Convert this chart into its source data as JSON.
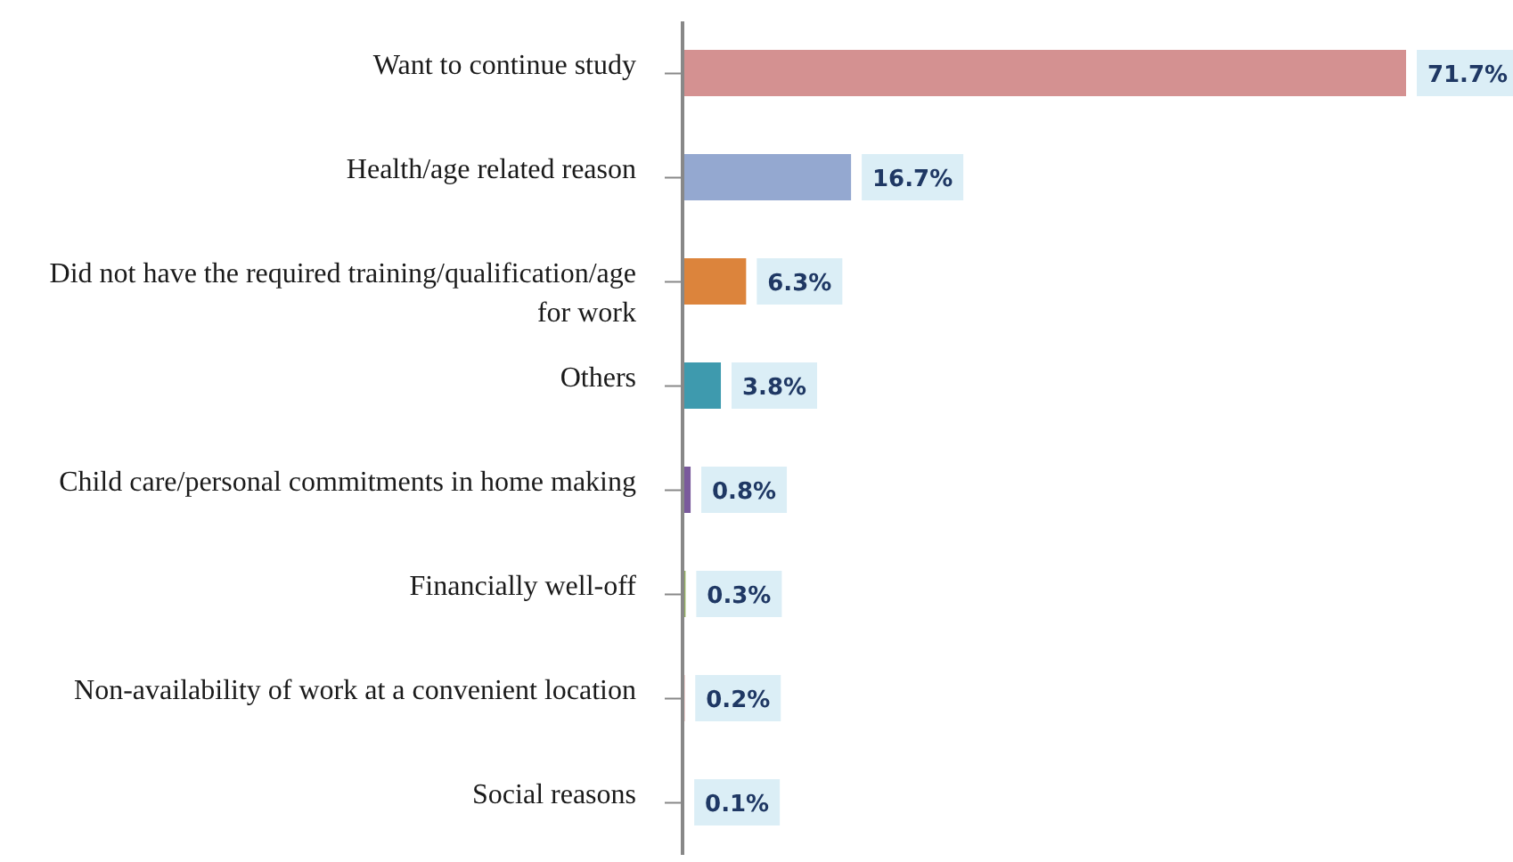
{
  "chart_data": {
    "type": "bar",
    "orientation": "horizontal",
    "categories": [
      "Want to continue study",
      "Health/age related reason",
      "Did not have the required training/qualification/age for work",
      "Others",
      "Child care/personal commitments in home making",
      "Financially well-off",
      "Non-availability of work at a convenient location",
      "Social reasons"
    ],
    "values": [
      71.7,
      16.7,
      6.3,
      3.8,
      0.8,
      0.3,
      0.2,
      0.1
    ],
    "colors": [
      "#d49191",
      "#94a8d0",
      "#dc843c",
      "#3e9aae",
      "#7a5a9c",
      "#94b060",
      "#c8605c",
      "#8090b8"
    ],
    "value_labels": [
      "71.7%",
      "16.7%",
      "6.3%",
      "3.8%",
      "0.8%",
      "0.3%",
      "0.2%",
      "0.1%"
    ],
    "legend": false,
    "grid": false
  }
}
